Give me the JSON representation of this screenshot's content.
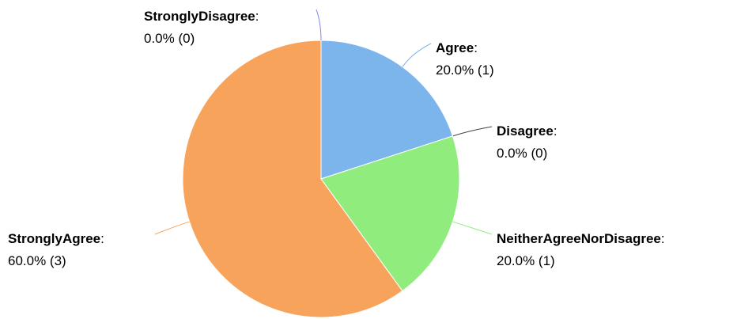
{
  "chart_data": {
    "type": "pie",
    "categories": [
      "Agree",
      "Disagree",
      "NeitherAgreeNorDisagree",
      "StronglyAgree",
      "StronglyDisagree"
    ],
    "values": [
      20,
      0,
      20,
      60,
      0
    ],
    "value_labels": [
      "20.0% (1)",
      "0.0% (0)",
      "20.0% (1)",
      "60.0% (3)",
      "0.0% (0)"
    ],
    "colors": [
      "#7cb5ec",
      "#434348",
      "#90ed7d",
      "#f7a35c",
      "#8085e9"
    ],
    "separator": ":"
  }
}
